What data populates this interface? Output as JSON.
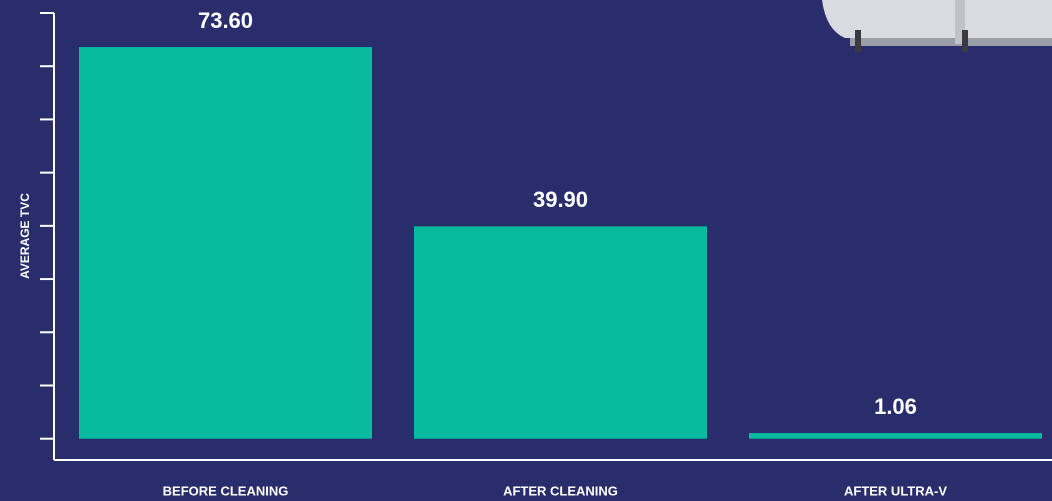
{
  "chart_data": {
    "type": "bar",
    "categories": [
      "BEFORE CLEANING",
      "AFTER CLEANING",
      "AFTER ULTRA-V"
    ],
    "values": [
      73.6,
      39.9,
      1.06
    ],
    "value_labels": [
      "73.60",
      "39.90",
      "1.06"
    ],
    "color": "#08bb9f",
    "ylabel": "AVERAGE TVC",
    "ylim": [
      -4,
      80
    ],
    "yticks": [
      0,
      10,
      20,
      30,
      40,
      50,
      60,
      70,
      80
    ]
  }
}
